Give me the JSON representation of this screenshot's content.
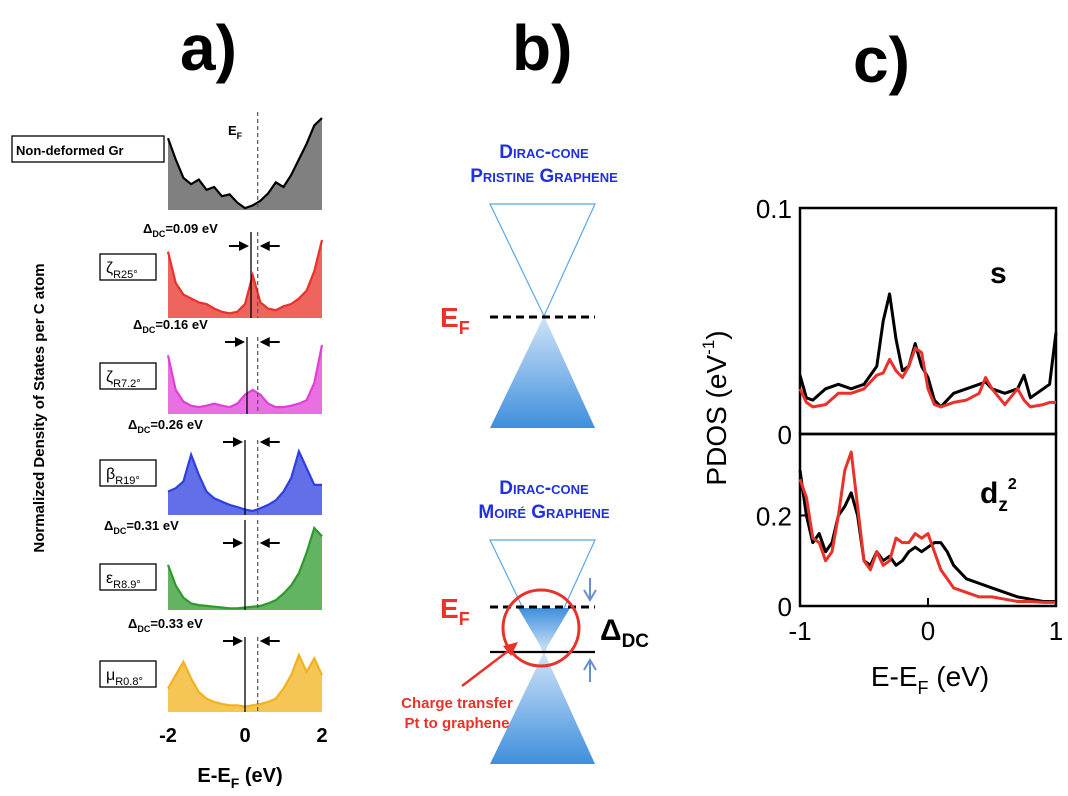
{
  "panel_labels": [
    "a)",
    "b)",
    "c)"
  ],
  "panel_a": {
    "ylabel": "Normalized Density of States per C atom",
    "xlabel_main": "E-E",
    "xlabel_sub": "F",
    "xlabel_unit": " (eV)",
    "ef_label_main": "E",
    "ef_label_sub": "F",
    "xticks": [
      "-2",
      "0",
      "2"
    ],
    "xlim": [
      -2,
      2
    ],
    "ef_line_x": 0.33,
    "delta_prefix": "Δ",
    "delta_sub": "DC",
    "colors": {
      "grey": "#555555",
      "red": "#e8322a",
      "magenta": "#e040d8",
      "blue": "#2f3fe0",
      "green": "#2e9a2e",
      "yellow": "#f2b21c"
    }
  },
  "chart_data": [
    {
      "type": "area",
      "panel": "a",
      "xlabel": "E-EF (eV)",
      "ylabel": "Normalized Density of States per C atom",
      "xlim": [
        -2,
        2
      ],
      "x": [
        -2.0,
        -1.8,
        -1.6,
        -1.4,
        -1.2,
        -1.0,
        -0.8,
        -0.6,
        -0.4,
        -0.2,
        0.0,
        0.2,
        0.4,
        0.6,
        0.8,
        1.0,
        1.2,
        1.4,
        1.6,
        1.8,
        2.0
      ],
      "series": [
        {
          "name": "Non-deformed Gr",
          "color": "#555555",
          "dirac_shift": null,
          "label_main": "Non-deformed Gr",
          "label_sub": "",
          "values": [
            0.78,
            0.55,
            0.35,
            0.28,
            0.33,
            0.22,
            0.25,
            0.15,
            0.17,
            0.08,
            0.02,
            0.05,
            0.1,
            0.18,
            0.3,
            0.25,
            0.38,
            0.55,
            0.72,
            0.92,
            1.0
          ]
        },
        {
          "name": "ζR25°",
          "color": "#e8322a",
          "dirac_shift": "0.09 eV",
          "label_main": "ζ",
          "label_sub": "R25°",
          "values": [
            0.85,
            0.45,
            0.3,
            0.25,
            0.2,
            0.18,
            0.12,
            0.08,
            0.06,
            0.08,
            0.18,
            0.55,
            0.2,
            0.12,
            0.1,
            0.15,
            0.18,
            0.25,
            0.35,
            0.6,
            1.0
          ]
        },
        {
          "name": "ζR7.2°",
          "color": "#e040d8",
          "dirac_shift": "0.16 eV",
          "label_main": "ζ",
          "label_sub": "R7.2°",
          "values": [
            0.85,
            0.35,
            0.18,
            0.12,
            0.1,
            0.12,
            0.15,
            0.12,
            0.1,
            0.15,
            0.28,
            0.35,
            0.28,
            0.15,
            0.1,
            0.1,
            0.12,
            0.15,
            0.2,
            0.45,
            1.0
          ]
        },
        {
          "name": "βR19°",
          "color": "#2f3fe0",
          "dirac_shift": "0.26 eV",
          "label_main": "β",
          "label_sub": "R19°",
          "values": [
            0.35,
            0.4,
            0.5,
            0.9,
            0.6,
            0.35,
            0.25,
            0.2,
            0.15,
            0.12,
            0.08,
            0.06,
            0.1,
            0.15,
            0.22,
            0.35,
            0.55,
            0.95,
            0.7,
            0.45,
            0.45
          ]
        },
        {
          "name": "εR8.9°",
          "color": "#2e9a2e",
          "dirac_shift": "0.31 eV",
          "label_main": "ε",
          "label_sub": "R8.9°",
          "values": [
            0.55,
            0.3,
            0.15,
            0.08,
            0.06,
            0.05,
            0.04,
            0.03,
            0.02,
            0.02,
            0.03,
            0.04,
            0.05,
            0.08,
            0.12,
            0.2,
            0.3,
            0.45,
            0.7,
            1.0,
            0.9
          ]
        },
        {
          "name": "μR0.8°",
          "color": "#f2b21c",
          "dirac_shift": "0.33 eV",
          "label_main": "μ",
          "label_sub": "R0.8°",
          "values": [
            0.35,
            0.55,
            0.75,
            0.5,
            0.3,
            0.2,
            0.15,
            0.12,
            0.1,
            0.1,
            0.08,
            0.1,
            0.12,
            0.15,
            0.2,
            0.35,
            0.55,
            0.85,
            0.6,
            0.8,
            0.55
          ]
        }
      ]
    },
    {
      "type": "line",
      "panel": "c",
      "xlabel": "E-EF (eV)",
      "ylabel": "PDOS (eV-1)",
      "xlim": [
        -1,
        1
      ],
      "subplots": [
        {
          "label": "s",
          "ylim": [
            0,
            0.1
          ],
          "yticks": [
            "0.1",
            "0"
          ],
          "x": [
            -1.0,
            -0.95,
            -0.9,
            -0.8,
            -0.7,
            -0.6,
            -0.5,
            -0.4,
            -0.35,
            -0.3,
            -0.25,
            -0.2,
            -0.15,
            -0.1,
            -0.05,
            0.0,
            0.05,
            0.1,
            0.2,
            0.3,
            0.4,
            0.45,
            0.5,
            0.6,
            0.7,
            0.75,
            0.8,
            0.9,
            0.95,
            1.0
          ],
          "series": [
            {
              "name": "black",
              "color": "#000000",
              "values": [
                0.026,
                0.016,
                0.015,
                0.02,
                0.022,
                0.02,
                0.022,
                0.03,
                0.05,
                0.062,
                0.042,
                0.028,
                0.03,
                0.04,
                0.03,
                0.025,
                0.015,
                0.012,
                0.018,
                0.02,
                0.022,
                0.023,
                0.02,
                0.018,
                0.02,
                0.026,
                0.016,
                0.02,
                0.022,
                0.045
              ]
            },
            {
              "name": "red",
              "color": "#e8322a",
              "values": [
                0.02,
                0.014,
                0.012,
                0.013,
                0.018,
                0.018,
                0.02,
                0.026,
                0.027,
                0.033,
                0.028,
                0.025,
                0.03,
                0.038,
                0.036,
                0.02,
                0.013,
                0.012,
                0.014,
                0.015,
                0.018,
                0.025,
                0.02,
                0.013,
                0.02,
                0.015,
                0.012,
                0.013,
                0.014,
                0.014
              ]
            }
          ]
        },
        {
          "label_main": "d",
          "label_sub": "z",
          "label_sup": "2",
          "ylim": [
            0,
            0.38
          ],
          "yticks": [
            "0.2",
            "0"
          ],
          "x": [
            -1.0,
            -0.95,
            -0.9,
            -0.85,
            -0.8,
            -0.75,
            -0.7,
            -0.65,
            -0.6,
            -0.55,
            -0.5,
            -0.45,
            -0.4,
            -0.35,
            -0.3,
            -0.25,
            -0.2,
            -0.15,
            -0.1,
            -0.05,
            0.0,
            0.05,
            0.1,
            0.15,
            0.2,
            0.3,
            0.4,
            0.5,
            0.6,
            0.7,
            0.8,
            0.9,
            1.0
          ],
          "series": [
            {
              "name": "black",
              "color": "#000000",
              "values": [
                0.3,
                0.2,
                0.14,
                0.16,
                0.12,
                0.14,
                0.2,
                0.22,
                0.25,
                0.2,
                0.1,
                0.09,
                0.12,
                0.1,
                0.11,
                0.09,
                0.1,
                0.12,
                0.13,
                0.12,
                0.13,
                0.14,
                0.14,
                0.12,
                0.09,
                0.06,
                0.05,
                0.04,
                0.03,
                0.02,
                0.015,
                0.01,
                0.01
              ]
            },
            {
              "name": "red",
              "color": "#e8322a",
              "values": [
                0.28,
                0.24,
                0.15,
                0.14,
                0.1,
                0.12,
                0.2,
                0.3,
                0.34,
                0.22,
                0.1,
                0.08,
                0.12,
                0.09,
                0.1,
                0.15,
                0.14,
                0.14,
                0.16,
                0.15,
                0.16,
                0.12,
                0.08,
                0.06,
                0.04,
                0.03,
                0.02,
                0.02,
                0.015,
                0.01,
                0.01,
                0.008,
                0.008
              ]
            }
          ]
        }
      ],
      "xticks": [
        "-1",
        "0",
        "1"
      ]
    }
  ],
  "panel_b": {
    "title1_line1": "Dirac-cone",
    "title1_line2": "Pristine Graphene",
    "title2_line1": "Dirac-cone",
    "title2_line2": "Moiré Graphene",
    "ef_main": "E",
    "ef_sub": "F",
    "delta_main": "Δ",
    "delta_sub": "DC",
    "annotation_line1": "Charge transfer",
    "annotation_line2": "Pt to graphene",
    "colors": {
      "title": "#2030e0",
      "ef": "#e8322a",
      "cone": "#5aa6e8",
      "annotation": "#e8322a"
    }
  },
  "panel_c": {
    "ylabel_main": "PDOS (eV",
    "ylabel_sup": "-1",
    "ylabel_close": ")",
    "xlabel_main": "E-E",
    "xlabel_sub": "F",
    "xlabel_unit": " (eV)"
  }
}
